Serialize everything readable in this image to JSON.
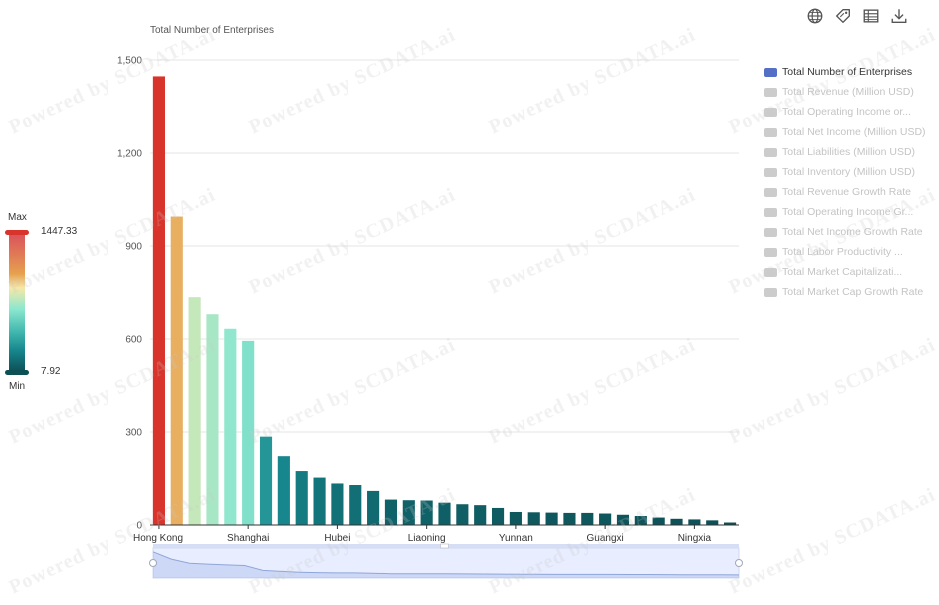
{
  "chart_data": {
    "type": "bar",
    "title": "Total Number of Enterprises",
    "ylim": [
      0,
      1500
    ],
    "yticks": [
      "0",
      "300",
      "600",
      "900",
      "1,200",
      "1,500"
    ],
    "grid": true,
    "legend_placement": "right",
    "x_tick_labels": [
      "Hong Kong",
      "Shanghai",
      "Hubei",
      "Liaoning",
      "Yunnan",
      "Guangxi",
      "Ningxia"
    ],
    "x_tick_label_indices": [
      0,
      5,
      10,
      15,
      20,
      25,
      30
    ],
    "categories": [
      "Hong Kong",
      "",
      "",
      "",
      "",
      "Shanghai",
      "",
      "",
      "",
      "",
      "Hubei",
      "",
      "",
      "",
      "",
      "Liaoning",
      "",
      "",
      "",
      "",
      "Yunnan",
      "",
      "",
      "",
      "",
      "Guangxi",
      "",
      "",
      "",
      "",
      "Ningxia",
      "",
      ""
    ],
    "series": [
      {
        "name": "Total Number of Enterprises",
        "values": [
          1447,
          995,
          735,
          680,
          633,
          594,
          285,
          222,
          174,
          153,
          134,
          129,
          110,
          82,
          80,
          79,
          72,
          67,
          64,
          55,
          42,
          41,
          40,
          39,
          39,
          37,
          33,
          29,
          24,
          20,
          18,
          15,
          8
        ]
      }
    ]
  },
  "visual_map": {
    "max_label": "Max",
    "min_label": "Min",
    "max_value": "1447.33",
    "min_value": "7.92",
    "range": [
      7.92,
      1447.33
    ],
    "colors": [
      "#0c4f55",
      "#16858c",
      "#3fb5ad",
      "#8ce7cf",
      "#f6e8a8",
      "#e6a14f",
      "#f18c1a",
      "#d9342b"
    ]
  },
  "legend": {
    "items": [
      {
        "label": "Total Number of Enterprises",
        "active": true
      },
      {
        "label": "Total Revenue (Million USD)",
        "active": false
      },
      {
        "label": "Total Operating Income or...",
        "active": false
      },
      {
        "label": "Total Net Income (Million USD)",
        "active": false
      },
      {
        "label": "Total Liabilities (Million USD)",
        "active": false
      },
      {
        "label": "Total Inventory (Million USD)",
        "active": false
      },
      {
        "label": "Total Revenue Growth Rate",
        "active": false
      },
      {
        "label": "Total Operating Income Gr...",
        "active": false
      },
      {
        "label": "Total Net Income Growth Rate",
        "active": false
      },
      {
        "label": "Total Labor Productivity ...",
        "active": false
      },
      {
        "label": "Total Market Capitalizati...",
        "active": false
      },
      {
        "label": "Total Market Cap Growth Rate",
        "active": false
      }
    ],
    "active_color": "#5470c6",
    "inactive_color": "#cccccc"
  },
  "toolbar": {
    "icons": [
      "globe-icon",
      "tag-icon",
      "table-icon",
      "download-icon"
    ]
  },
  "watermark": "Powered by SCDATA.ai"
}
